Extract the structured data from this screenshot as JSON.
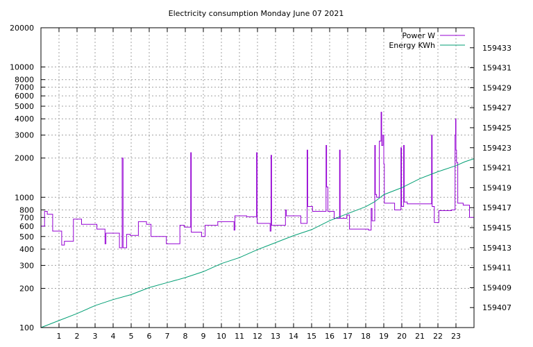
{
  "chart_data": {
    "type": "line",
    "title": "Electricity consumption Monday June 07 2021",
    "xlabel": "",
    "ylabel": "",
    "grid": true,
    "legend_placement": "top-right",
    "x_axis": {
      "range": [
        0,
        24
      ],
      "ticks": [
        1,
        2,
        3,
        4,
        5,
        6,
        7,
        8,
        9,
        10,
        11,
        12,
        13,
        14,
        15,
        16,
        17,
        18,
        19,
        20,
        21,
        22,
        23
      ]
    },
    "y_axis_left": {
      "scale": "log",
      "range": [
        100,
        20000
      ],
      "ticks": [
        100,
        200,
        300,
        400,
        500,
        600,
        700,
        800,
        1000,
        2000,
        3000,
        4000,
        5000,
        6000,
        7000,
        8000,
        10000,
        20000
      ]
    },
    "y_axis_right": {
      "scale": "linear",
      "range": [
        159405,
        159435
      ],
      "ticks": [
        159407,
        159409,
        159411,
        159413,
        159415,
        159417,
        159419,
        159421,
        159423,
        159425,
        159427,
        159429,
        159431,
        159433
      ]
    },
    "series": [
      {
        "name": "Power W",
        "axis": "left",
        "color": "#9400d3",
        "points": [
          [
            0.0,
            600
          ],
          [
            0.2,
            600
          ],
          [
            0.2,
            780
          ],
          [
            0.35,
            780
          ],
          [
            0.35,
            740
          ],
          [
            0.65,
            740
          ],
          [
            0.65,
            550
          ],
          [
            1.15,
            550
          ],
          [
            1.15,
            430
          ],
          [
            1.3,
            430
          ],
          [
            1.3,
            460
          ],
          [
            1.8,
            460
          ],
          [
            1.8,
            680
          ],
          [
            2.25,
            680
          ],
          [
            2.25,
            620
          ],
          [
            3.1,
            620
          ],
          [
            3.1,
            570
          ],
          [
            3.55,
            570
          ],
          [
            3.55,
            440
          ],
          [
            3.6,
            440
          ],
          [
            3.6,
            530
          ],
          [
            4.35,
            530
          ],
          [
            4.35,
            410
          ],
          [
            4.5,
            410
          ],
          [
            4.5,
            2000
          ],
          [
            4.55,
            2000
          ],
          [
            4.55,
            410
          ],
          [
            4.75,
            410
          ],
          [
            4.75,
            520
          ],
          [
            4.95,
            520
          ],
          [
            4.95,
            510
          ],
          [
            5.4,
            510
          ],
          [
            5.4,
            650
          ],
          [
            5.85,
            650
          ],
          [
            5.85,
            620
          ],
          [
            6.1,
            620
          ],
          [
            6.1,
            500
          ],
          [
            6.95,
            500
          ],
          [
            6.95,
            440
          ],
          [
            7.7,
            440
          ],
          [
            7.7,
            610
          ],
          [
            7.95,
            610
          ],
          [
            7.95,
            590
          ],
          [
            8.3,
            590
          ],
          [
            8.3,
            2200
          ],
          [
            8.33,
            2200
          ],
          [
            8.33,
            540
          ],
          [
            8.9,
            540
          ],
          [
            8.9,
            500
          ],
          [
            9.1,
            500
          ],
          [
            9.1,
            610
          ],
          [
            9.8,
            610
          ],
          [
            9.8,
            650
          ],
          [
            10.7,
            650
          ],
          [
            10.7,
            560
          ],
          [
            10.75,
            560
          ],
          [
            10.75,
            720
          ],
          [
            11.4,
            720
          ],
          [
            11.4,
            710
          ],
          [
            11.95,
            710
          ],
          [
            11.95,
            2200
          ],
          [
            11.98,
            2200
          ],
          [
            11.98,
            630
          ],
          [
            12.7,
            630
          ],
          [
            12.7,
            550
          ],
          [
            12.75,
            550
          ],
          [
            12.75,
            2100
          ],
          [
            12.78,
            2100
          ],
          [
            12.78,
            610
          ],
          [
            13.55,
            610
          ],
          [
            13.55,
            800
          ],
          [
            13.6,
            800
          ],
          [
            13.6,
            720
          ],
          [
            14.4,
            720
          ],
          [
            14.4,
            630
          ],
          [
            14.75,
            630
          ],
          [
            14.75,
            2300
          ],
          [
            14.78,
            2300
          ],
          [
            14.78,
            850
          ],
          [
            15.05,
            850
          ],
          [
            15.05,
            780
          ],
          [
            15.8,
            780
          ],
          [
            15.8,
            2500
          ],
          [
            15.83,
            2500
          ],
          [
            15.83,
            1200
          ],
          [
            15.9,
            1200
          ],
          [
            15.9,
            780
          ],
          [
            16.25,
            780
          ],
          [
            16.25,
            690
          ],
          [
            16.55,
            690
          ],
          [
            16.55,
            2300
          ],
          [
            16.58,
            2300
          ],
          [
            16.58,
            690
          ],
          [
            16.95,
            690
          ],
          [
            16.95,
            730
          ],
          [
            17.1,
            730
          ],
          [
            17.1,
            570
          ],
          [
            18.15,
            570
          ],
          [
            18.15,
            560
          ],
          [
            18.3,
            560
          ],
          [
            18.3,
            820
          ],
          [
            18.35,
            820
          ],
          [
            18.35,
            660
          ],
          [
            18.5,
            660
          ],
          [
            18.5,
            2500
          ],
          [
            18.53,
            2500
          ],
          [
            18.53,
            1050
          ],
          [
            18.6,
            1050
          ],
          [
            18.6,
            1000
          ],
          [
            18.75,
            1000
          ],
          [
            18.75,
            2700
          ],
          [
            18.85,
            2700
          ],
          [
            18.85,
            4500
          ],
          [
            18.88,
            4500
          ],
          [
            18.88,
            2500
          ],
          [
            18.95,
            2500
          ],
          [
            18.95,
            3000
          ],
          [
            19.0,
            3000
          ],
          [
            19.0,
            1800
          ],
          [
            19.03,
            1800
          ],
          [
            19.03,
            900
          ],
          [
            19.6,
            900
          ],
          [
            19.6,
            800
          ],
          [
            19.95,
            800
          ],
          [
            19.95,
            2400
          ],
          [
            19.98,
            2400
          ],
          [
            19.98,
            850
          ],
          [
            20.1,
            850
          ],
          [
            20.1,
            2500
          ],
          [
            20.13,
            2500
          ],
          [
            20.13,
            920
          ],
          [
            20.3,
            920
          ],
          [
            20.3,
            890
          ],
          [
            21.65,
            890
          ],
          [
            21.65,
            3000
          ],
          [
            21.68,
            3000
          ],
          [
            21.68,
            850
          ],
          [
            21.8,
            850
          ],
          [
            21.8,
            640
          ],
          [
            22.05,
            640
          ],
          [
            22.05,
            790
          ],
          [
            22.75,
            790
          ],
          [
            22.75,
            800
          ],
          [
            22.95,
            800
          ],
          [
            22.95,
            3000
          ],
          [
            22.98,
            3000
          ],
          [
            22.98,
            4000
          ],
          [
            23.0,
            4000
          ],
          [
            23.0,
            2300
          ],
          [
            23.03,
            2300
          ],
          [
            23.03,
            1850
          ],
          [
            23.1,
            1850
          ],
          [
            23.1,
            900
          ],
          [
            23.4,
            900
          ],
          [
            23.4,
            870
          ],
          [
            23.75,
            870
          ],
          [
            23.75,
            700
          ],
          [
            24.0,
            700
          ]
        ]
      },
      {
        "name": "Energy KWh",
        "axis": "right",
        "color": "#009e73",
        "points": [
          [
            0.0,
            159405.0
          ],
          [
            1.0,
            159405.7
          ],
          [
            2.0,
            159406.4
          ],
          [
            3.0,
            159407.2
          ],
          [
            4.0,
            159407.8
          ],
          [
            5.0,
            159408.3
          ],
          [
            6.0,
            159409.0
          ],
          [
            7.0,
            159409.5
          ],
          [
            8.0,
            159410.0
          ],
          [
            9.0,
            159410.6
          ],
          [
            10.0,
            159411.4
          ],
          [
            11.0,
            159412.0
          ],
          [
            12.0,
            159412.8
          ],
          [
            13.0,
            159413.5
          ],
          [
            14.0,
            159414.2
          ],
          [
            15.0,
            159414.8
          ],
          [
            16.0,
            159415.7
          ],
          [
            17.0,
            159416.4
          ],
          [
            18.0,
            159417.1
          ],
          [
            18.5,
            159417.6
          ],
          [
            19.0,
            159418.3
          ],
          [
            20.0,
            159419.0
          ],
          [
            21.0,
            159419.9
          ],
          [
            22.0,
            159420.6
          ],
          [
            23.0,
            159421.2
          ],
          [
            23.5,
            159421.6
          ],
          [
            24.0,
            159421.9
          ]
        ]
      }
    ]
  }
}
